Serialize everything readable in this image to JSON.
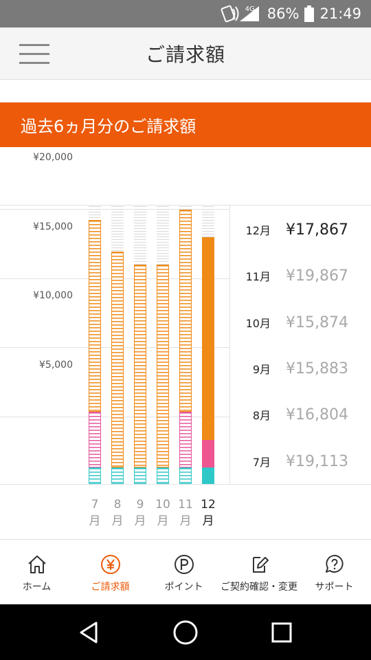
{
  "status_bar": {
    "network": "4G",
    "battery": "86%",
    "time": "21:49"
  },
  "header": {
    "title": "ご請求額"
  },
  "banner": {
    "text": "過去6ヵ月分のご請求額"
  },
  "chart_data": {
    "type": "bar",
    "stacked": true,
    "categories": [
      "7月",
      "8月",
      "9月",
      "10月",
      "11月",
      "12月"
    ],
    "x_tick_labels": [
      {
        "num": "7",
        "unit": "月"
      },
      {
        "num": "8",
        "unit": "月"
      },
      {
        "num": "9",
        "unit": "月"
      },
      {
        "num": "10",
        "unit": "月"
      },
      {
        "num": "11",
        "unit": "月"
      },
      {
        "num": "12",
        "unit": "月"
      }
    ],
    "y_tick_labels": [
      "¥20,000",
      "¥15,000",
      "¥10,000",
      "¥5,000"
    ],
    "y_ticks": [
      20000,
      15000,
      10000,
      5000
    ],
    "ylim": [
      0,
      22000
    ],
    "totals": [
      19113,
      16804,
      15883,
      15874,
      19867,
      17867
    ],
    "series": [
      {
        "color": "#2fc8c8",
        "values": [
          1200,
          1200,
          1200,
          1200,
          1200,
          1200
        ]
      },
      {
        "color": "#ef5590",
        "values": [
          4000,
          0,
          0,
          0,
          4000,
          2000
        ]
      },
      {
        "color": "#f08a17",
        "values": [
          13913,
          15604,
          14683,
          14674,
          14667,
          14667
        ]
      }
    ],
    "selected_index": 5,
    "grid": true
  },
  "legend": [
    {
      "month": "12月",
      "amount": "¥17,867",
      "active": true
    },
    {
      "month": "11月",
      "amount": "¥19,867",
      "active": false
    },
    {
      "month": "10月",
      "amount": "¥15,874",
      "active": false
    },
    {
      "month": "9月",
      "amount": "¥15,883",
      "active": false
    },
    {
      "month": "8月",
      "amount": "¥16,804",
      "active": false
    },
    {
      "month": "7月",
      "amount": "¥19,113",
      "active": false
    }
  ],
  "tabs": [
    {
      "label": "ホーム",
      "icon": "home-icon",
      "active": false
    },
    {
      "label": "ご請求額",
      "icon": "yen-icon",
      "active": true
    },
    {
      "label": "ポイント",
      "icon": "point-icon",
      "active": false
    },
    {
      "label": "ご契約確認・変更",
      "icon": "contract-edit-icon",
      "active": false
    },
    {
      "label": "サポート",
      "icon": "support-icon",
      "active": false
    }
  ],
  "colors": {
    "accent": "#ec5a0a",
    "orange": "#f08a17",
    "pink": "#ef5590",
    "teal": "#2fc8c8"
  }
}
